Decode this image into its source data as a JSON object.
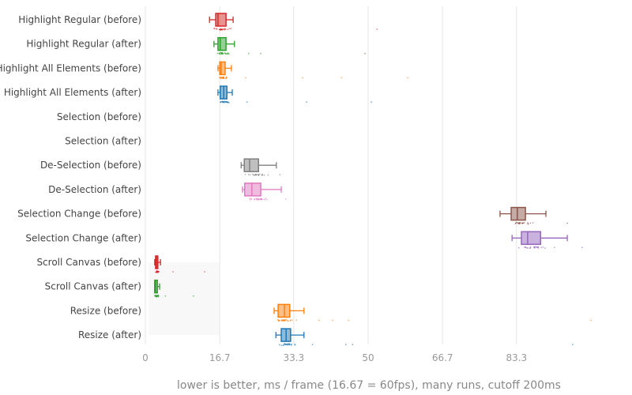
{
  "chart_data": {
    "type": "box",
    "orientation": "horizontal",
    "xlabel": "lower is better, ms / frame (16.67 = 60fps), many runs, cutoff 200ms",
    "xlim": [
      0,
      108
    ],
    "xticks": [
      0,
      16.7,
      33.3,
      50,
      66.7,
      83.3
    ],
    "xtick_labels": [
      "0",
      "16.7",
      "33.3",
      "50",
      "66.7",
      "83.3"
    ],
    "grid": true,
    "series": [
      {
        "name": "Highlight Regular (before)",
        "color": "#d62728",
        "min": 14.4,
        "q1": 15.8,
        "median": 16.3,
        "q3": 18.1,
        "max": 19.7,
        "outliers": [
          52
        ]
      },
      {
        "name": "Highlight Regular (after)",
        "color": "#2ca02c",
        "min": 15.4,
        "q1": 16.3,
        "median": 16.8,
        "q3": 18.1,
        "max": 20.0,
        "outliers": [
          23.2,
          25.9,
          49.3
        ]
      },
      {
        "name": "Highlight All Elements (before)",
        "color": "#ff7f0e",
        "min": 16.3,
        "q1": 16.7,
        "median": 17.0,
        "q3": 17.9,
        "max": 19.3,
        "outliers": [
          22.5,
          35.3,
          44,
          58.9
        ]
      },
      {
        "name": "Highlight All Elements (after)",
        "color": "#1f77b4",
        "min": 16.3,
        "q1": 16.8,
        "median": 17.6,
        "q3": 18.3,
        "max": 19.5,
        "outliers": [
          22.8,
          36.2,
          50.7
        ]
      },
      {
        "name": "Selection (before)",
        "color": "#9edae5",
        "min": null,
        "q1": null,
        "median": null,
        "q3": null,
        "max": null,
        "outliers": []
      },
      {
        "name": "Selection (after)",
        "color": "#17becf",
        "min": null,
        "q1": null,
        "median": null,
        "q3": null,
        "max": null,
        "outliers": []
      },
      {
        "name": "De-Selection (before)",
        "color": "#7f7f7f",
        "min": 21.5,
        "q1": 22.2,
        "median": 23.4,
        "q3": 25.4,
        "max": 29.4,
        "outliers": [
          30.2
        ]
      },
      {
        "name": "De-Selection (after)",
        "color": "#e377c2",
        "min": 21.8,
        "q1": 22.3,
        "median": 23.9,
        "q3": 25.9,
        "max": 30.5,
        "outliers": [
          31.5
        ]
      },
      {
        "name": "Selection Change (before)",
        "color": "#8c564b",
        "min": 79.6,
        "q1": 82.1,
        "median": 83.5,
        "q3": 85.3,
        "max": 89.9,
        "outliers": [
          94.7
        ]
      },
      {
        "name": "Selection Change (after)",
        "color": "#9467bd",
        "min": 82.3,
        "q1": 84.4,
        "median": 85.8,
        "q3": 88.7,
        "max": 94.7,
        "outliers": [
          98
        ]
      },
      {
        "name": "Scroll Canvas (before)",
        "color": "#d62728",
        "min": 2.1,
        "q1": 2.3,
        "median": 2.5,
        "q3": 2.8,
        "max": 3.4,
        "outliers": [
          6.2,
          13.3
        ]
      },
      {
        "name": "Scroll Canvas (after)",
        "color": "#2ca02c",
        "min": 2.1,
        "q1": 2.1,
        "median": 2.3,
        "q3": 2.7,
        "max": 3.2,
        "outliers": [
          4.5,
          10.8
        ]
      },
      {
        "name": "Resize (before)",
        "color": "#ff7f0e",
        "min": 28.9,
        "q1": 29.8,
        "median": 31.2,
        "q3": 32.4,
        "max": 35.6,
        "outliers": [
          39,
          42,
          45.6,
          100
        ]
      },
      {
        "name": "Resize (after)",
        "color": "#1f77b4",
        "min": 29.3,
        "q1": 30.5,
        "median": 31.6,
        "q3": 32.6,
        "max": 35.6,
        "outliers": [
          37.5,
          45,
          46.5,
          95.9
        ]
      }
    ]
  }
}
